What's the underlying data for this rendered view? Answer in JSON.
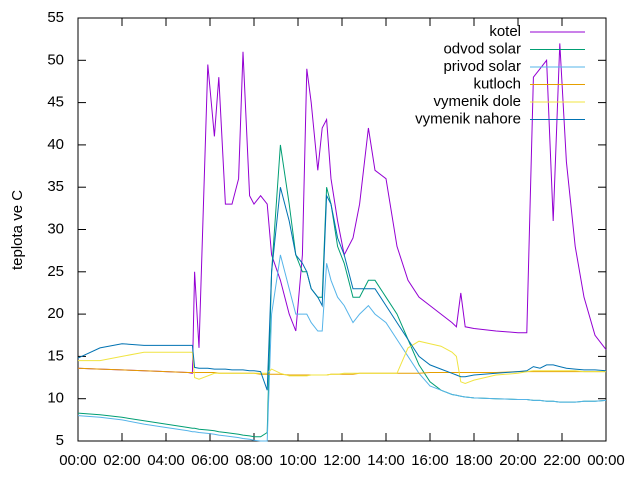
{
  "chart_data": {
    "type": "line",
    "y_label": "teplota ve C",
    "x": [
      0,
      1,
      2,
      3,
      4,
      5,
      5.2,
      5.3,
      5.5,
      5.9,
      6.2,
      6.4,
      6.7,
      7,
      7.3,
      7.5,
      7.8,
      8,
      8.3,
      8.6,
      8.8,
      9.2,
      9.6,
      9.9,
      10.2,
      10.4,
      10.6,
      10.9,
      11.1,
      11.3,
      11.5,
      11.8,
      12.1,
      12.5,
      12.8,
      13.2,
      13.5,
      14,
      14.5,
      15,
      15.5,
      16,
      16.5,
      17,
      17.2,
      17.4,
      17.6,
      18,
      19,
      20,
      20.4,
      20.7,
      21,
      21.3,
      21.6,
      21.9,
      22.2,
      22.6,
      23,
      23.5,
      24
    ],
    "series": [
      {
        "name": "kotel",
        "color": "#9400d3",
        "values": [
          13.6,
          13.5,
          13.4,
          13.3,
          13.2,
          13.1,
          13,
          25,
          16,
          49.5,
          41,
          48,
          33,
          33,
          36,
          51,
          34,
          33,
          34,
          33,
          27,
          24,
          20,
          18,
          27,
          49,
          45,
          37,
          42,
          43,
          36,
          31,
          27,
          29,
          33,
          42,
          37,
          36,
          28,
          24,
          22,
          21,
          20,
          19,
          18.5,
          22.5,
          18.5,
          18.3,
          18,
          17.8,
          17.8,
          48,
          49,
          50,
          31,
          52,
          38,
          28,
          22,
          17.5,
          15.8
        ]
      },
      {
        "name": "odvod solar",
        "color": "#009e73",
        "values": [
          8.3,
          8.1,
          7.8,
          7.4,
          7,
          6.6,
          6.5,
          6.5,
          6.4,
          6.3,
          6.2,
          6.1,
          6,
          5.9,
          5.8,
          5.7,
          5.6,
          5.5,
          5.5,
          6,
          25,
          40,
          33,
          27,
          25,
          25,
          23,
          22,
          22,
          35,
          33,
          28,
          26,
          22,
          22,
          24,
          24,
          22,
          20,
          17,
          14,
          12,
          11,
          10.5,
          10.4,
          10.3,
          10.2,
          10.1,
          10,
          9.9,
          9.9,
          9.8,
          9.8,
          9.7,
          9.7,
          9.6,
          9.6,
          9.6,
          9.7,
          9.7,
          9.8
        ]
      },
      {
        "name": "privod solar",
        "color": "#56b4e9",
        "values": [
          8,
          7.8,
          7.5,
          7,
          6.6,
          6.2,
          6.1,
          6.1,
          6,
          5.9,
          5.8,
          5.7,
          5.6,
          5.5,
          5.4,
          5.3,
          5.2,
          5.1,
          5,
          5,
          20,
          27,
          23,
          20,
          20,
          20,
          19,
          18,
          18,
          26,
          24,
          22,
          21,
          19,
          20,
          21,
          20,
          19,
          17,
          15,
          13,
          11.5,
          11,
          10.5,
          10.4,
          10.3,
          10.2,
          10.1,
          10,
          9.9,
          9.9,
          9.8,
          9.8,
          9.7,
          9.7,
          9.6,
          9.6,
          9.6,
          9.7,
          9.7,
          9.8
        ]
      },
      {
        "name": "kutloch",
        "color": "#e69f00",
        "values": [
          13.6,
          13.5,
          13.4,
          13.3,
          13.2,
          13.1,
          13.1,
          13.1,
          13.1,
          13.1,
          13.1,
          13,
          13,
          13,
          13,
          13,
          13,
          13,
          12.9,
          12.9,
          12.9,
          12.9,
          12.8,
          12.8,
          12.8,
          12.8,
          12.8,
          12.8,
          12.8,
          12.8,
          12.9,
          12.9,
          12.9,
          12.9,
          13,
          13,
          13,
          13,
          13,
          13,
          13,
          13.1,
          13.1,
          13.1,
          13.1,
          13.1,
          13.1,
          13.1,
          13.1,
          13.2,
          13.2,
          13.2,
          13.2,
          13.2,
          13.2,
          13.2,
          13.2,
          13.2,
          13.2,
          13.2,
          13.2
        ]
      },
      {
        "name": "vymenik dole",
        "color": "#f0e442",
        "values": [
          14.5,
          14.5,
          15,
          15.5,
          15.5,
          15.5,
          15.5,
          12.5,
          12.3,
          12.7,
          13,
          13,
          13,
          13,
          13,
          13,
          13,
          13,
          13,
          13,
          13.5,
          13,
          12.7,
          12.7,
          12.7,
          12.7,
          12.8,
          12.8,
          12.8,
          12.8,
          12.9,
          12.9,
          13,
          13,
          13,
          13,
          13,
          13,
          13,
          16,
          16.8,
          16.5,
          16.2,
          15.5,
          15,
          12,
          11.8,
          12.2,
          12.8,
          13,
          13.2,
          13.3,
          13.3,
          13.3,
          13.3,
          13.3,
          13.3,
          13.3,
          13.2,
          13.2,
          13.2
        ]
      },
      {
        "name": "vymenik nahore",
        "color": "#0072b2",
        "values": [
          14.8,
          16,
          16.5,
          16.3,
          16.3,
          16.3,
          16.3,
          13.7,
          13.6,
          13.6,
          13.5,
          13.5,
          13.5,
          13.4,
          13.4,
          13.4,
          13.3,
          13.3,
          13.2,
          11,
          25,
          35,
          31,
          27,
          26,
          25,
          23,
          22,
          21,
          34,
          33,
          29,
          27,
          23,
          23,
          23,
          23,
          21,
          19,
          17,
          15,
          14,
          13.5,
          13,
          12.8,
          12.6,
          12.6,
          12.8,
          13,
          13.2,
          13.3,
          13.8,
          13.6,
          14,
          14,
          13.8,
          13.6,
          13.5,
          13.4,
          13.4,
          13.3
        ]
      }
    ],
    "xlim": [
      0,
      24
    ],
    "xticks": [
      {
        "value": 0,
        "label": "00:00"
      },
      {
        "value": 2,
        "label": "02:00"
      },
      {
        "value": 4,
        "label": "04:00"
      },
      {
        "value": 6,
        "label": "06:00"
      },
      {
        "value": 8,
        "label": "08:00"
      },
      {
        "value": 10,
        "label": "10:00"
      },
      {
        "value": 12,
        "label": "12:00"
      },
      {
        "value": 14,
        "label": "14:00"
      },
      {
        "value": 16,
        "label": "16:00"
      },
      {
        "value": 18,
        "label": "18:00"
      },
      {
        "value": 20,
        "label": "20:00"
      },
      {
        "value": 22,
        "label": "22:00"
      },
      {
        "value": 24,
        "label": "00:00"
      }
    ],
    "ylim": [
      5,
      55
    ],
    "yticks": [
      5,
      10,
      15,
      20,
      25,
      30,
      35,
      40,
      45,
      50,
      55
    ],
    "grid": false,
    "legend": "top-right"
  }
}
